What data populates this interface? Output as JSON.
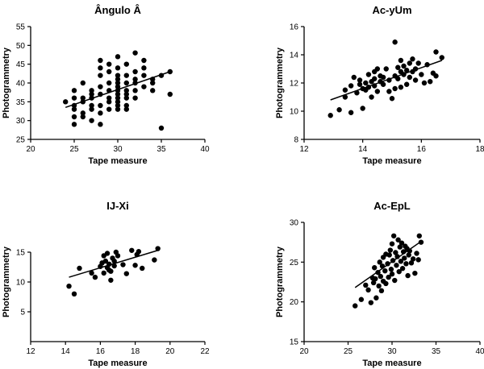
{
  "chart_data": [
    {
      "type": "scatter",
      "title": "Ângulo Â",
      "xlabel": "Tape measure",
      "ylabel": "Photogrammetry",
      "xlim": [
        20,
        40
      ],
      "ylim": [
        25,
        55
      ],
      "xticks": [
        20,
        25,
        30,
        35,
        40
      ],
      "yticks": [
        25,
        30,
        35,
        40,
        45,
        50,
        55
      ],
      "grid": false,
      "points": [
        [
          24,
          35
        ],
        [
          25,
          36
        ],
        [
          25,
          33
        ],
        [
          25,
          31
        ],
        [
          25,
          29
        ],
        [
          25,
          34
        ],
        [
          25,
          38
        ],
        [
          26,
          35
        ],
        [
          26,
          32
        ],
        [
          26,
          31
        ],
        [
          26,
          40
        ],
        [
          26,
          36
        ],
        [
          27,
          36
        ],
        [
          27,
          34
        ],
        [
          27,
          30
        ],
        [
          27,
          33
        ],
        [
          27,
          38
        ],
        [
          27,
          37
        ],
        [
          28,
          34
        ],
        [
          28,
          37
        ],
        [
          28,
          39
        ],
        [
          28,
          42
        ],
        [
          28,
          44
        ],
        [
          28,
          46
        ],
        [
          28,
          32
        ],
        [
          28,
          29
        ],
        [
          29,
          35
        ],
        [
          29,
          38
        ],
        [
          29,
          40
        ],
        [
          29,
          33
        ],
        [
          29,
          45
        ],
        [
          29,
          36
        ],
        [
          29,
          43
        ],
        [
          30,
          33
        ],
        [
          30,
          34
        ],
        [
          30,
          35
        ],
        [
          30,
          36
        ],
        [
          30,
          37
        ],
        [
          30,
          38
        ],
        [
          30,
          39
        ],
        [
          30,
          40
        ],
        [
          30,
          41
        ],
        [
          30,
          42
        ],
        [
          30,
          44
        ],
        [
          30,
          47
        ],
        [
          31,
          34
        ],
        [
          31,
          36
        ],
        [
          31,
          38
        ],
        [
          31,
          40
        ],
        [
          31,
          42
        ],
        [
          31,
          37
        ],
        [
          31,
          45
        ],
        [
          31,
          33
        ],
        [
          32,
          36
        ],
        [
          32,
          38
        ],
        [
          32,
          40
        ],
        [
          32,
          41
        ],
        [
          32,
          43
        ],
        [
          32,
          48
        ],
        [
          33,
          39
        ],
        [
          33,
          42
        ],
        [
          33,
          44
        ],
        [
          33,
          46
        ],
        [
          34,
          38
        ],
        [
          34,
          41
        ],
        [
          34,
          40
        ],
        [
          35,
          42
        ],
        [
          35,
          28
        ],
        [
          36,
          43
        ],
        [
          36,
          37
        ]
      ],
      "trendline": [
        [
          24,
          33.5
        ],
        [
          36,
          43
        ]
      ]
    },
    {
      "type": "scatter",
      "title": "Ac-yUm",
      "xlabel": "Tape measure",
      "ylabel": "Photogrammetry",
      "xlim": [
        12,
        18
      ],
      "ylim": [
        8,
        16
      ],
      "xticks": [
        12,
        14,
        16,
        18
      ],
      "yticks": [
        8,
        10,
        12,
        14,
        16
      ],
      "grid": false,
      "points": [
        [
          12.9,
          9.7
        ],
        [
          13.2,
          10.1
        ],
        [
          13.4,
          11.0
        ],
        [
          13.4,
          11.5
        ],
        [
          13.6,
          11.8
        ],
        [
          13.6,
          9.9
        ],
        [
          13.7,
          12.4
        ],
        [
          13.8,
          11.3
        ],
        [
          13.9,
          11.9
        ],
        [
          13.9,
          12.2
        ],
        [
          14.0,
          10.2
        ],
        [
          14.0,
          11.6
        ],
        [
          14.1,
          12.0
        ],
        [
          14.1,
          11.5
        ],
        [
          14.2,
          11.7
        ],
        [
          14.2,
          12.6
        ],
        [
          14.3,
          11.0
        ],
        [
          14.3,
          12.1
        ],
        [
          14.4,
          11.8
        ],
        [
          14.4,
          12.3
        ],
        [
          14.4,
          12.8
        ],
        [
          14.5,
          11.4
        ],
        [
          14.5,
          13.0
        ],
        [
          14.6,
          12.1
        ],
        [
          14.6,
          12.5
        ],
        [
          14.7,
          11.9
        ],
        [
          14.7,
          12.4
        ],
        [
          14.8,
          13.0
        ],
        [
          14.9,
          11.4
        ],
        [
          14.9,
          12.2
        ],
        [
          15.0,
          10.9
        ],
        [
          15.1,
          11.6
        ],
        [
          15.1,
          12.5
        ],
        [
          15.1,
          14.9
        ],
        [
          15.2,
          12.3
        ],
        [
          15.2,
          13.1
        ],
        [
          15.3,
          12.8
        ],
        [
          15.3,
          11.7
        ],
        [
          15.3,
          13.6
        ],
        [
          15.4,
          12.6
        ],
        [
          15.4,
          13.2
        ],
        [
          15.5,
          12.9
        ],
        [
          15.5,
          11.9
        ],
        [
          15.6,
          12.4
        ],
        [
          15.6,
          13.4
        ],
        [
          15.7,
          12.8
        ],
        [
          15.7,
          13.7
        ],
        [
          15.8,
          12.2
        ],
        [
          15.8,
          13.0
        ],
        [
          15.9,
          13.4
        ],
        [
          16.0,
          12.6
        ],
        [
          16.1,
          12.0
        ],
        [
          16.2,
          13.3
        ],
        [
          16.3,
          12.1
        ],
        [
          16.4,
          12.7
        ],
        [
          16.5,
          14.2
        ],
        [
          16.5,
          12.5
        ],
        [
          16.7,
          13.8
        ]
      ],
      "trendline": [
        [
          12.9,
          10.8
        ],
        [
          16.7,
          13.6
        ]
      ]
    },
    {
      "type": "scatter",
      "title": "IJ-Xi",
      "xlabel": "Tape measure",
      "ylabel": "Photogrammetry",
      "xlim": [
        12,
        22
      ],
      "ylim": [
        0,
        20
      ],
      "xticks": [
        12,
        14,
        16,
        18,
        20,
        22
      ],
      "yticks": [
        5,
        10,
        15
      ],
      "grid": false,
      "points": [
        [
          14.2,
          9.3
        ],
        [
          14.5,
          8.0
        ],
        [
          14.8,
          12.3
        ],
        [
          15.5,
          11.5
        ],
        [
          15.7,
          10.8
        ],
        [
          16.0,
          12.6
        ],
        [
          16.1,
          13.2
        ],
        [
          16.2,
          14.4
        ],
        [
          16.2,
          11.5
        ],
        [
          16.3,
          13.5
        ],
        [
          16.4,
          12.4
        ],
        [
          16.4,
          14.8
        ],
        [
          16.5,
          12.0
        ],
        [
          16.5,
          13.0
        ],
        [
          16.6,
          11.8
        ],
        [
          16.6,
          10.3
        ],
        [
          16.7,
          14.0
        ],
        [
          16.8,
          12.7
        ],
        [
          16.8,
          13.5
        ],
        [
          16.9,
          15.0
        ],
        [
          17.0,
          14.4
        ],
        [
          17.3,
          12.9
        ],
        [
          17.5,
          11.4
        ],
        [
          17.8,
          15.3
        ],
        [
          18.0,
          12.8
        ],
        [
          18.1,
          14.6
        ],
        [
          18.2,
          15.1
        ],
        [
          18.4,
          12.3
        ],
        [
          19.1,
          13.7
        ],
        [
          19.3,
          15.6
        ]
      ],
      "trendline": [
        [
          14.2,
          10.8
        ],
        [
          19.3,
          15.3
        ]
      ]
    },
    {
      "type": "scatter",
      "title": "Ac-EpL",
      "xlabel": "Tape measure",
      "ylabel": "Photogrammetry",
      "xlim": [
        20,
        40
      ],
      "ylim": [
        15,
        30
      ],
      "xticks": [
        20,
        25,
        30,
        35,
        40
      ],
      "yticks": [
        15,
        20,
        25,
        30
      ],
      "grid": false,
      "points": [
        [
          25.8,
          19.5
        ],
        [
          26.5,
          20.3
        ],
        [
          27.0,
          22.1
        ],
        [
          27.3,
          21.5
        ],
        [
          27.6,
          19.9
        ],
        [
          27.8,
          23.0
        ],
        [
          27.9,
          22.4
        ],
        [
          28.0,
          24.3
        ],
        [
          28.1,
          22.9
        ],
        [
          28.2,
          20.5
        ],
        [
          28.4,
          23.7
        ],
        [
          28.5,
          22.0
        ],
        [
          28.6,
          25.0
        ],
        [
          28.7,
          23.2
        ],
        [
          28.8,
          21.4
        ],
        [
          28.9,
          24.5
        ],
        [
          29.0,
          22.6
        ],
        [
          29.0,
          25.6
        ],
        [
          29.2,
          23.9
        ],
        [
          29.3,
          26.0
        ],
        [
          29.3,
          22.3
        ],
        [
          29.5,
          24.8
        ],
        [
          29.6,
          23.1
        ],
        [
          29.7,
          25.9
        ],
        [
          29.8,
          26.5
        ],
        [
          29.9,
          24.1
        ],
        [
          30.0,
          23.5
        ],
        [
          30.0,
          27.3
        ],
        [
          30.1,
          25.2
        ],
        [
          30.2,
          28.3
        ],
        [
          30.3,
          22.7
        ],
        [
          30.4,
          26.2
        ],
        [
          30.5,
          24.6
        ],
        [
          30.6,
          25.7
        ],
        [
          30.7,
          27.8
        ],
        [
          30.8,
          23.8
        ],
        [
          30.9,
          26.9
        ],
        [
          31.0,
          25.1
        ],
        [
          31.1,
          27.4
        ],
        [
          31.2,
          24.2
        ],
        [
          31.3,
          26.3
        ],
        [
          31.4,
          25.5
        ],
        [
          31.5,
          27.0
        ],
        [
          31.6,
          24.8
        ],
        [
          31.7,
          26.7
        ],
        [
          31.8,
          23.3
        ],
        [
          31.9,
          25.9
        ],
        [
          32.0,
          26.4
        ],
        [
          32.2,
          24.9
        ],
        [
          32.4,
          25.4
        ],
        [
          32.6,
          23.6
        ],
        [
          32.8,
          26.1
        ],
        [
          33.0,
          25.3
        ],
        [
          33.1,
          28.3
        ],
        [
          33.3,
          27.5
        ]
      ],
      "trendline": [
        [
          25.8,
          21.8
        ],
        [
          33.3,
          27.6
        ]
      ]
    }
  ]
}
